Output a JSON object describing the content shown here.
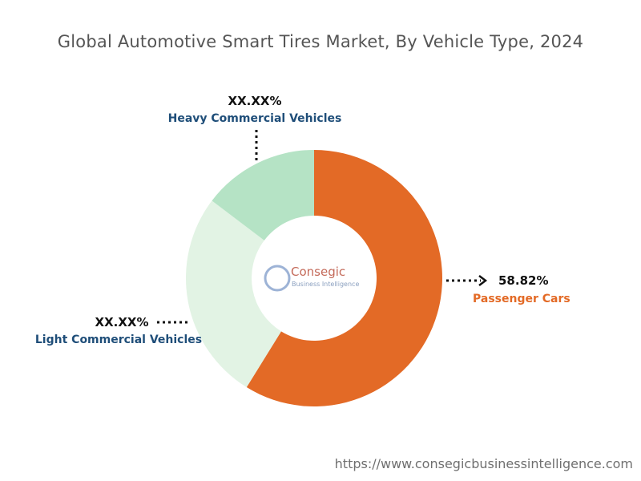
{
  "chart_data": {
    "type": "pie",
    "title": "Global Automotive Smart Tires Market, By Vehicle Type, 2024",
    "slices": [
      {
        "name": "Passenger Cars",
        "label": "58.82%",
        "value": 58.82,
        "color": "#e36a26",
        "label_color": "#e36a26"
      },
      {
        "name": "Light Commercial Vehicles",
        "label": "XX.XX%",
        "value": 26.5,
        "color": "#e2f3e4",
        "label_color": "#1f4e79"
      },
      {
        "name": "Heavy Commercial Vehicles",
        "label": "XX.XX%",
        "value": 14.68,
        "color": "#b5e3c5",
        "label_color": "#1f4e79"
      }
    ]
  },
  "logo": {
    "name": "Consegic",
    "tagline": "Business Intelligence"
  },
  "source": "https://www.consegicbusinessintelligence.com"
}
